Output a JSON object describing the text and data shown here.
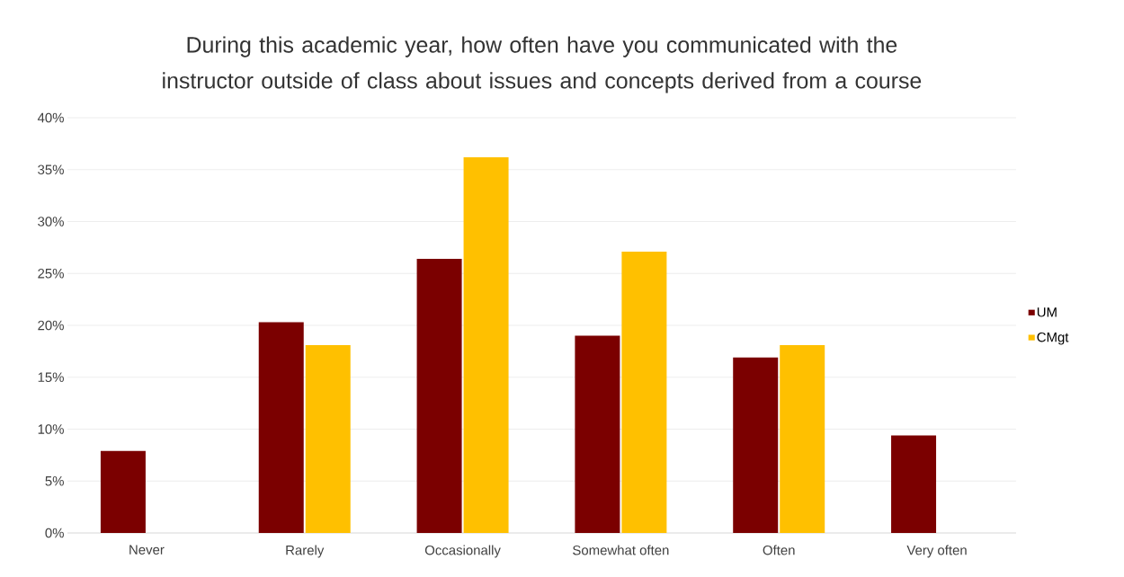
{
  "chart_data": {
    "type": "bar",
    "title": "During this academic year, how often have you communicated with the instructor outside of class about issues and concepts derived from a course",
    "categories": [
      "Never",
      "Rarely",
      "Occasionally",
      "Somewhat often",
      "Often",
      "Very often"
    ],
    "series": [
      {
        "name": "UM",
        "color": "#7b0000",
        "values": [
          7.9,
          20.3,
          26.4,
          19.0,
          16.9,
          9.4
        ]
      },
      {
        "name": "CMgt",
        "color": "#ffc000",
        "values": [
          null,
          18.1,
          36.2,
          27.1,
          18.1,
          null
        ]
      }
    ],
    "ylim": [
      0,
      40
    ],
    "yticks": [
      {
        "value": 0,
        "label": "0%"
      },
      {
        "value": 5,
        "label": "5%"
      },
      {
        "value": 10,
        "label": "10%"
      },
      {
        "value": 15,
        "label": "15%"
      },
      {
        "value": 20,
        "label": "20%"
      },
      {
        "value": 25,
        "label": "25%"
      },
      {
        "value": 30,
        "label": "30%"
      },
      {
        "value": 35,
        "label": "35%"
      },
      {
        "value": 40,
        "label": "40%"
      }
    ],
    "grid": "y",
    "legend": "right"
  }
}
